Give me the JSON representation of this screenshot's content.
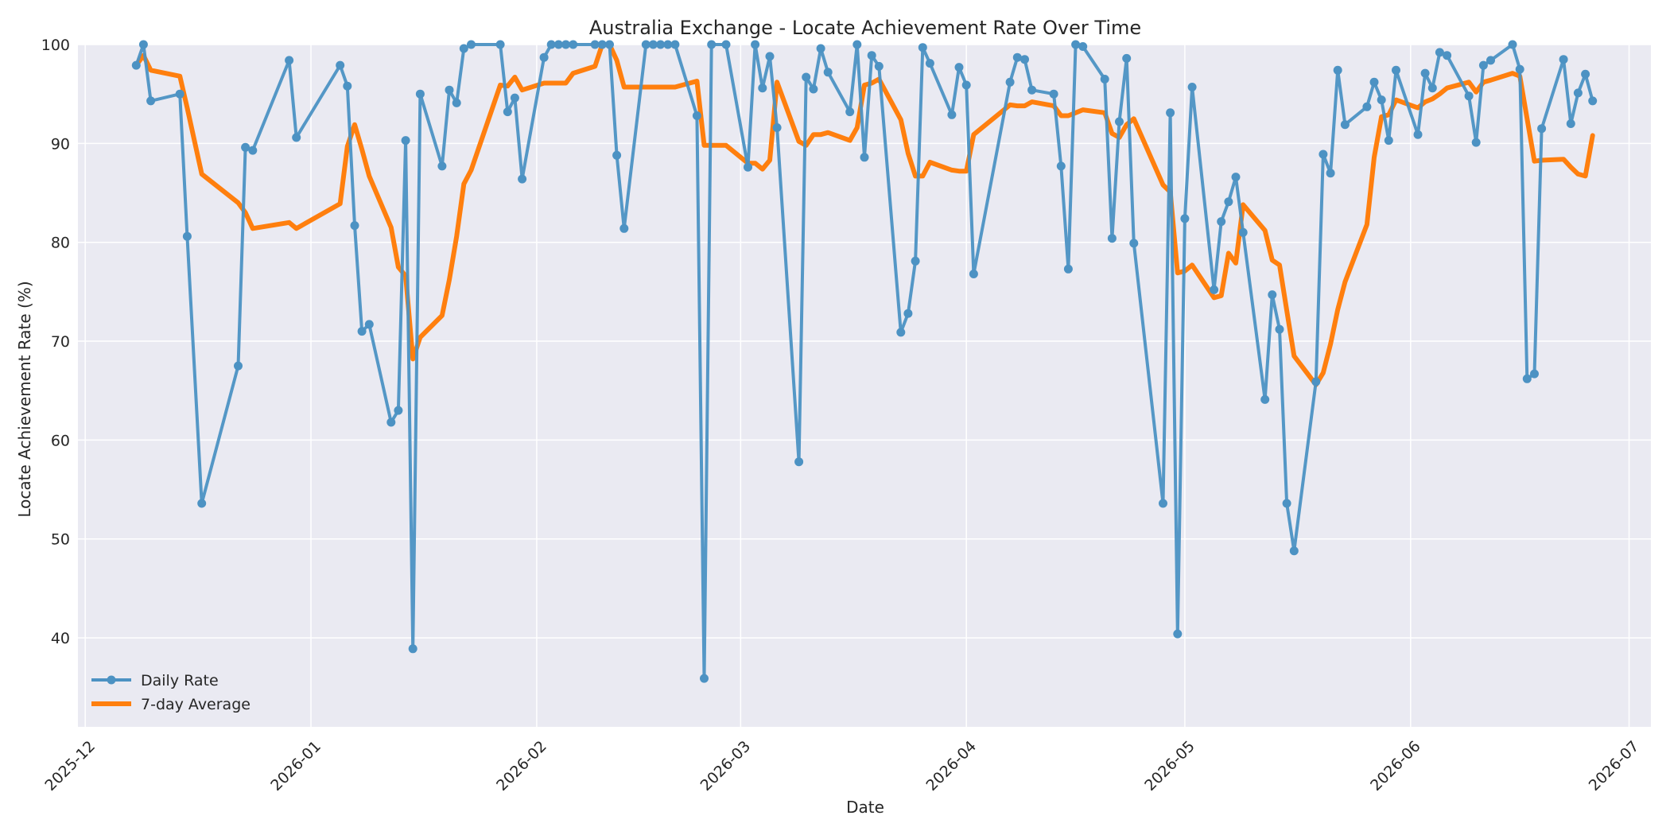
{
  "chart_data": {
    "type": "line",
    "title": "Australia Exchange - Locate Achievement Rate Over Time",
    "xlabel": "Date",
    "ylabel": "Locate Achievement Rate (%)",
    "xlim": [
      "2025-11-30",
      "2026-07-04"
    ],
    "ylim": [
      31,
      100
    ],
    "x_ticks": [
      "2025-12",
      "2026-01",
      "2026-02",
      "2026-03",
      "2026-04",
      "2026-05",
      "2026-06",
      "2026-07"
    ],
    "y_ticks": [
      40,
      50,
      60,
      70,
      80,
      90,
      100
    ],
    "grid": true,
    "legend": "lower-left",
    "series": [
      {
        "name": "Daily Rate",
        "color": "#4c92c3",
        "marker": "circle",
        "points": [
          [
            "2025-12-08",
            97.9
          ],
          [
            "2025-12-09",
            100.0
          ],
          [
            "2025-12-10",
            94.3
          ],
          [
            "2025-12-14",
            95.0
          ],
          [
            "2025-12-15",
            80.6
          ],
          [
            "2025-12-17",
            53.6
          ],
          [
            "2025-12-22",
            67.5
          ],
          [
            "2025-12-23",
            89.6
          ],
          [
            "2025-12-24",
            89.3
          ],
          [
            "2025-12-29",
            98.4
          ],
          [
            "2025-12-30",
            90.6
          ],
          [
            "2026-01-05",
            97.9
          ],
          [
            "2026-01-06",
            95.8
          ],
          [
            "2026-01-07",
            81.7
          ],
          [
            "2026-01-08",
            71.0
          ],
          [
            "2026-01-09",
            71.7
          ],
          [
            "2026-01-12",
            61.8
          ],
          [
            "2026-01-13",
            63.0
          ],
          [
            "2026-01-14",
            90.3
          ],
          [
            "2026-01-15",
            38.9
          ],
          [
            "2026-01-16",
            95.0
          ],
          [
            "2026-01-19",
            87.7
          ],
          [
            "2026-01-20",
            95.4
          ],
          [
            "2026-01-21",
            94.1
          ],
          [
            "2026-01-22",
            99.6
          ],
          [
            "2026-01-23",
            100.0
          ],
          [
            "2026-01-27",
            100.0
          ],
          [
            "2026-01-28",
            93.2
          ],
          [
            "2026-01-29",
            94.6
          ],
          [
            "2026-01-30",
            86.4
          ],
          [
            "2026-02-02",
            98.7
          ],
          [
            "2026-02-03",
            100.0
          ],
          [
            "2026-02-04",
            100.0
          ],
          [
            "2026-02-05",
            100.0
          ],
          [
            "2026-02-06",
            100.0
          ],
          [
            "2026-02-09",
            100.0
          ],
          [
            "2026-02-10",
            100.0
          ],
          [
            "2026-02-11",
            100.0
          ],
          [
            "2026-02-12",
            88.8
          ],
          [
            "2026-02-13",
            81.4
          ],
          [
            "2026-02-16",
            100.0
          ],
          [
            "2026-02-17",
            100.0
          ],
          [
            "2026-02-18",
            100.0
          ],
          [
            "2026-02-19",
            100.0
          ],
          [
            "2026-02-20",
            100.0
          ],
          [
            "2026-02-23",
            92.8
          ],
          [
            "2026-02-24",
            35.9
          ],
          [
            "2026-02-25",
            100.0
          ],
          [
            "2026-02-27",
            100.0
          ],
          [
            "2026-03-02",
            87.6
          ],
          [
            "2026-03-03",
            100.0
          ],
          [
            "2026-03-04",
            95.6
          ],
          [
            "2026-03-05",
            98.8
          ],
          [
            "2026-03-06",
            91.6
          ],
          [
            "2026-03-09",
            57.8
          ],
          [
            "2026-03-10",
            96.7
          ],
          [
            "2026-03-11",
            95.5
          ],
          [
            "2026-03-12",
            99.6
          ],
          [
            "2026-03-13",
            97.2
          ],
          [
            "2026-03-16",
            93.2
          ],
          [
            "2026-03-17",
            100.0
          ],
          [
            "2026-03-18",
            88.6
          ],
          [
            "2026-03-19",
            98.9
          ],
          [
            "2026-03-20",
            97.8
          ],
          [
            "2026-03-23",
            70.9
          ],
          [
            "2026-03-24",
            72.8
          ],
          [
            "2026-03-25",
            78.1
          ],
          [
            "2026-03-26",
            99.7
          ],
          [
            "2026-03-27",
            98.1
          ],
          [
            "2026-03-30",
            92.9
          ],
          [
            "2026-03-31",
            97.7
          ],
          [
            "2026-04-01",
            95.9
          ],
          [
            "2026-04-02",
            76.8
          ],
          [
            "2026-04-07",
            96.2
          ],
          [
            "2026-04-08",
            98.7
          ],
          [
            "2026-04-09",
            98.5
          ],
          [
            "2026-04-10",
            95.4
          ],
          [
            "2026-04-13",
            95.0
          ],
          [
            "2026-04-14",
            87.7
          ],
          [
            "2026-04-15",
            77.3
          ],
          [
            "2026-04-16",
            100.0
          ],
          [
            "2026-04-17",
            99.8
          ],
          [
            "2026-04-20",
            96.5
          ],
          [
            "2026-04-21",
            80.4
          ],
          [
            "2026-04-22",
            92.2
          ],
          [
            "2026-04-23",
            98.6
          ],
          [
            "2026-04-24",
            79.9
          ],
          [
            "2026-04-28",
            53.6
          ],
          [
            "2026-04-29",
            93.1
          ],
          [
            "2026-04-30",
            40.4
          ],
          [
            "2026-05-01",
            82.4
          ],
          [
            "2026-05-02",
            95.7
          ],
          [
            "2026-05-05",
            75.2
          ],
          [
            "2026-05-06",
            82.1
          ],
          [
            "2026-05-07",
            84.1
          ],
          [
            "2026-05-08",
            86.6
          ],
          [
            "2026-05-09",
            81.0
          ],
          [
            "2026-05-12",
            64.1
          ],
          [
            "2026-05-13",
            74.7
          ],
          [
            "2026-05-14",
            71.2
          ],
          [
            "2026-05-15",
            53.6
          ],
          [
            "2026-05-16",
            48.8
          ],
          [
            "2026-05-19",
            65.9
          ],
          [
            "2026-05-20",
            88.9
          ],
          [
            "2026-05-21",
            87.0
          ],
          [
            "2026-05-22",
            97.4
          ],
          [
            "2026-05-23",
            91.9
          ],
          [
            "2026-05-26",
            93.7
          ],
          [
            "2026-05-27",
            96.2
          ],
          [
            "2026-05-28",
            94.4
          ],
          [
            "2026-05-29",
            90.3
          ],
          [
            "2026-05-30",
            97.4
          ],
          [
            "2026-06-02",
            90.9
          ],
          [
            "2026-06-03",
            97.1
          ],
          [
            "2026-06-04",
            95.6
          ],
          [
            "2026-06-05",
            99.2
          ],
          [
            "2026-06-06",
            98.9
          ],
          [
            "2026-06-09",
            94.8
          ],
          [
            "2026-06-10",
            90.1
          ],
          [
            "2026-06-11",
            97.9
          ],
          [
            "2026-06-12",
            98.4
          ],
          [
            "2026-06-15",
            100.0
          ],
          [
            "2026-06-16",
            97.5
          ],
          [
            "2026-06-17",
            66.2
          ],
          [
            "2026-06-18",
            66.7
          ],
          [
            "2026-06-19",
            91.5
          ],
          [
            "2026-06-22",
            98.5
          ],
          [
            "2026-06-23",
            92.0
          ],
          [
            "2026-06-24",
            95.1
          ],
          [
            "2026-06-25",
            97.0
          ],
          [
            "2026-06-26",
            94.3
          ]
        ]
      },
      {
        "name": "7-day Average",
        "color": "#ff7f0e",
        "points": [
          [
            "2025-12-08",
            97.9
          ],
          [
            "2025-12-09",
            98.9
          ],
          [
            "2025-12-10",
            97.4
          ],
          [
            "2025-12-14",
            96.8
          ],
          [
            "2025-12-15",
            93.6
          ],
          [
            "2025-12-17",
            86.9
          ],
          [
            "2025-12-22",
            84.0
          ],
          [
            "2025-12-23",
            83.0
          ],
          [
            "2025-12-24",
            81.4
          ],
          [
            "2025-12-29",
            82.0
          ],
          [
            "2025-12-30",
            81.4
          ],
          [
            "2026-01-05",
            83.9
          ],
          [
            "2026-01-06",
            89.7
          ],
          [
            "2026-01-07",
            91.9
          ],
          [
            "2026-01-08",
            89.4
          ],
          [
            "2026-01-09",
            86.7
          ],
          [
            "2026-01-12",
            81.5
          ],
          [
            "2026-01-13",
            77.5
          ],
          [
            "2026-01-14",
            76.6
          ],
          [
            "2026-01-15",
            68.2
          ],
          [
            "2026-01-16",
            70.4
          ],
          [
            "2026-01-19",
            72.6
          ],
          [
            "2026-01-20",
            76.2
          ],
          [
            "2026-01-21",
            80.6
          ],
          [
            "2026-01-22",
            85.9
          ],
          [
            "2026-01-23",
            87.3
          ],
          [
            "2026-01-27",
            95.9
          ],
          [
            "2026-01-28",
            95.8
          ],
          [
            "2026-01-29",
            96.7
          ],
          [
            "2026-01-30",
            95.4
          ],
          [
            "2026-02-02",
            96.1
          ],
          [
            "2026-02-03",
            96.1
          ],
          [
            "2026-02-04",
            96.1
          ],
          [
            "2026-02-05",
            96.1
          ],
          [
            "2026-02-06",
            97.1
          ],
          [
            "2026-02-09",
            97.8
          ],
          [
            "2026-02-10",
            100.0
          ],
          [
            "2026-02-11",
            100.0
          ],
          [
            "2026-02-12",
            98.4
          ],
          [
            "2026-02-13",
            95.7
          ],
          [
            "2026-02-16",
            95.7
          ],
          [
            "2026-02-17",
            95.7
          ],
          [
            "2026-02-18",
            95.7
          ],
          [
            "2026-02-19",
            95.7
          ],
          [
            "2026-02-20",
            95.7
          ],
          [
            "2026-02-23",
            96.3
          ],
          [
            "2026-02-24",
            89.8
          ],
          [
            "2026-02-25",
            89.8
          ],
          [
            "2026-02-27",
            89.8
          ],
          [
            "2026-03-02",
            88.0
          ],
          [
            "2026-03-03",
            88.0
          ],
          [
            "2026-03-04",
            87.4
          ],
          [
            "2026-03-05",
            88.3
          ],
          [
            "2026-03-06",
            96.2
          ],
          [
            "2026-03-09",
            90.2
          ],
          [
            "2026-03-10",
            89.8
          ],
          [
            "2026-03-11",
            90.9
          ],
          [
            "2026-03-12",
            90.9
          ],
          [
            "2026-03-13",
            91.1
          ],
          [
            "2026-03-16",
            90.3
          ],
          [
            "2026-03-17",
            91.6
          ],
          [
            "2026-03-18",
            95.9
          ],
          [
            "2026-03-19",
            96.1
          ],
          [
            "2026-03-20",
            96.5
          ],
          [
            "2026-03-23",
            92.4
          ],
          [
            "2026-03-24",
            89.0
          ],
          [
            "2026-03-25",
            86.7
          ],
          [
            "2026-03-26",
            86.7
          ],
          [
            "2026-03-27",
            88.1
          ],
          [
            "2026-03-30",
            87.3
          ],
          [
            "2026-03-31",
            87.2
          ],
          [
            "2026-04-01",
            87.2
          ],
          [
            "2026-04-02",
            90.9
          ],
          [
            "2026-04-07",
            93.9
          ],
          [
            "2026-04-08",
            93.8
          ],
          [
            "2026-04-09",
            93.8
          ],
          [
            "2026-04-10",
            94.2
          ],
          [
            "2026-04-13",
            93.8
          ],
          [
            "2026-04-14",
            92.8
          ],
          [
            "2026-04-15",
            92.8
          ],
          [
            "2026-04-16",
            93.1
          ],
          [
            "2026-04-17",
            93.4
          ],
          [
            "2026-04-20",
            93.1
          ],
          [
            "2026-04-21",
            91.0
          ],
          [
            "2026-04-22",
            90.6
          ],
          [
            "2026-04-23",
            91.9
          ],
          [
            "2026-04-24",
            92.5
          ],
          [
            "2026-04-28",
            85.8
          ],
          [
            "2026-04-29",
            85.1
          ],
          [
            "2026-04-30",
            76.9
          ],
          [
            "2026-05-01",
            77.1
          ],
          [
            "2026-05-02",
            77.7
          ],
          [
            "2026-05-05",
            74.4
          ],
          [
            "2026-05-06",
            74.6
          ],
          [
            "2026-05-07",
            78.9
          ],
          [
            "2026-05-08",
            77.9
          ],
          [
            "2026-05-09",
            83.8
          ],
          [
            "2026-05-12",
            81.2
          ],
          [
            "2026-05-13",
            78.2
          ],
          [
            "2026-05-14",
            77.7
          ],
          [
            "2026-05-15",
            73.1
          ],
          [
            "2026-05-16",
            68.5
          ],
          [
            "2026-05-19",
            65.6
          ],
          [
            "2026-05-20",
            66.8
          ],
          [
            "2026-05-21",
            69.7
          ],
          [
            "2026-05-22",
            73.2
          ],
          [
            "2026-05-23",
            76.0
          ],
          [
            "2026-05-26",
            81.8
          ],
          [
            "2026-05-27",
            88.6
          ],
          [
            "2026-05-28",
            92.7
          ],
          [
            "2026-05-29",
            92.9
          ],
          [
            "2026-05-30",
            94.4
          ],
          [
            "2026-06-02",
            93.6
          ],
          [
            "2026-06-03",
            94.2
          ],
          [
            "2026-06-04",
            94.5
          ],
          [
            "2026-06-05",
            95.0
          ],
          [
            "2026-06-06",
            95.6
          ],
          [
            "2026-06-09",
            96.2
          ],
          [
            "2026-06-10",
            95.2
          ],
          [
            "2026-06-11",
            96.2
          ],
          [
            "2026-06-12",
            96.4
          ],
          [
            "2026-06-15",
            97.1
          ],
          [
            "2026-06-16",
            96.8
          ],
          [
            "2026-06-17",
            92.5
          ],
          [
            "2026-06-18",
            88.2
          ],
          [
            "2026-06-19",
            88.3
          ],
          [
            "2026-06-22",
            88.4
          ],
          [
            "2026-06-23",
            87.6
          ],
          [
            "2026-06-24",
            86.9
          ],
          [
            "2026-06-25",
            86.7
          ],
          [
            "2026-06-26",
            90.8
          ]
        ]
      }
    ]
  }
}
